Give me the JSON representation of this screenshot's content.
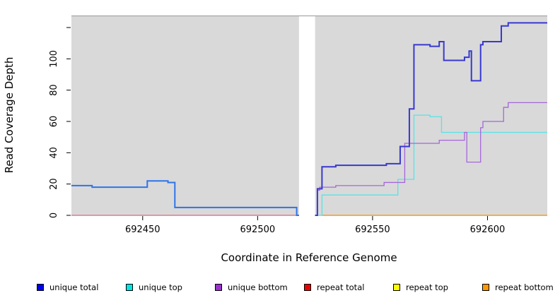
{
  "legend": [
    {
      "label": "unique total",
      "color": "#0000ee"
    },
    {
      "label": "unique top",
      "color": "#00e5e5"
    },
    {
      "label": "unique bottom",
      "color": "#9933cc"
    },
    {
      "label": "repeat total",
      "color": "#ee0000"
    },
    {
      "label": "repeat top",
      "color": "#ffff00"
    },
    {
      "label": "repeat bottom",
      "color": "#ff9900"
    }
  ],
  "chart_data": {
    "type": "line",
    "subtype": "step",
    "title": "",
    "xlabel": "Coordinate in Reference Genome",
    "ylabel": "Read Coverage Depth",
    "xlim": [
      692419,
      692626
    ],
    "ylim": [
      0,
      128
    ],
    "x_ticks": [
      692450,
      692500,
      692550,
      692600
    ],
    "y_ticks": [
      0,
      20,
      40,
      60,
      80,
      100,
      120
    ],
    "y_tick_labels": [
      "0",
      "20",
      "40",
      "60",
      "80",
      "100",
      ""
    ],
    "grid": false,
    "legend_position": "bottom",
    "plot_background": "#d9d9d9",
    "no_data_gap": [
      692518,
      692525
    ],
    "series": [
      {
        "name": "repeat total",
        "line_width": 1.3,
        "segments": [
          {
            "color": "#e35f81",
            "points": [
              [
                692419,
                0
              ],
              [
                692518,
                0
              ]
            ]
          }
        ]
      },
      {
        "name": "repeat top",
        "line_width": 1.3,
        "segments": [
          {
            "color": "#86d994",
            "points": [
              [
                692525,
                0
              ],
              [
                692528,
                0
              ]
            ]
          }
        ]
      },
      {
        "name": "repeat bottom",
        "line_width": 1.6,
        "segments": [
          {
            "color": "#ff9517",
            "points": [
              [
                692528,
                0
              ],
              [
                692626,
                0
              ]
            ]
          }
        ]
      },
      {
        "name": "unique top",
        "line_width": 1.3,
        "segments": [
          {
            "color": "#58e2e6",
            "points": [
              [
                692525,
                0
              ],
              [
                692528,
                13
              ],
              [
                692561,
                23
              ],
              [
                692568,
                64
              ],
              [
                692575,
                63
              ],
              [
                692580,
                53
              ],
              [
                692626,
                53
              ]
            ]
          }
        ]
      },
      {
        "name": "unique bottom",
        "line_width": 1.3,
        "segments": [
          {
            "color": "#a566d9",
            "points": [
              [
                692525,
                0
              ],
              [
                692526,
                16
              ],
              [
                692527,
                18
              ],
              [
                692534,
                19
              ],
              [
                692555,
                21
              ],
              [
                692564,
                46
              ],
              [
                692579,
                48
              ],
              [
                692590,
                53
              ],
              [
                692591,
                34
              ],
              [
                692597,
                56
              ],
              [
                692598,
                60
              ],
              [
                692607,
                69
              ],
              [
                692609,
                72
              ],
              [
                692626,
                72
              ]
            ]
          }
        ]
      },
      {
        "name": "unique total",
        "line_width": 2,
        "segments": [
          {
            "color": "#2e74e8",
            "points": [
              [
                692419,
                19
              ],
              [
                692428,
                18
              ],
              [
                692452,
                22
              ],
              [
                692461,
                21
              ],
              [
                692464,
                5
              ],
              [
                692517,
                0
              ],
              [
                692518,
                0
              ]
            ]
          },
          {
            "color": "#3838d0",
            "points": [
              [
                692525,
                0
              ],
              [
                692526,
                17
              ],
              [
                692528,
                31
              ],
              [
                692534,
                32
              ],
              [
                692556,
                33
              ],
              [
                692562,
                44
              ],
              [
                692566,
                68
              ],
              [
                692568,
                109
              ],
              [
                692575,
                108
              ],
              [
                692579,
                111
              ],
              [
                692581,
                99
              ],
              [
                692590,
                101
              ],
              [
                692592,
                105
              ],
              [
                692593,
                86
              ],
              [
                692597,
                109
              ],
              [
                692598,
                111
              ],
              [
                692606,
                121
              ],
              [
                692609,
                123
              ],
              [
                692626,
                123
              ]
            ]
          }
        ]
      }
    ]
  }
}
